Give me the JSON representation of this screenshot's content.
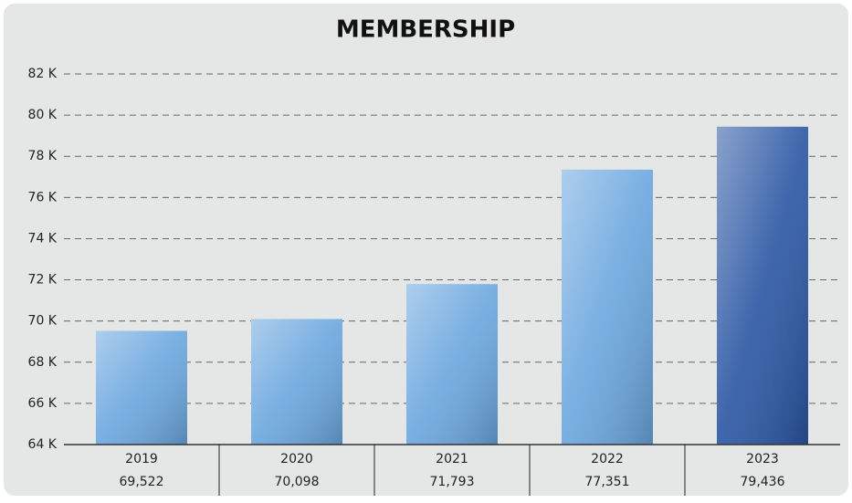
{
  "chart_data": {
    "type": "bar",
    "title": "MEMBERSHIP",
    "categories": [
      "2019",
      "2020",
      "2021",
      "2022",
      "2023"
    ],
    "values": [
      69522,
      70098,
      71793,
      77351,
      79436
    ],
    "value_labels": [
      "69,522",
      "70,098",
      "71,793",
      "77,351",
      "79,436"
    ],
    "colors": [
      "#6aa6de",
      "#6aa6de",
      "#6aa6de",
      "#6aa6de",
      "#2a56a3"
    ],
    "ylim": [
      64000,
      82000
    ],
    "yticks": [
      {
        "value": 64000,
        "label": "64 K"
      },
      {
        "value": 66000,
        "label": "66 K"
      },
      {
        "value": 68000,
        "label": "68 K"
      },
      {
        "value": 70000,
        "label": "70 K"
      },
      {
        "value": 72000,
        "label": "72 K"
      },
      {
        "value": 74000,
        "label": "74 K"
      },
      {
        "value": 76000,
        "label": "76 K"
      },
      {
        "value": 78000,
        "label": "78 K"
      },
      {
        "value": 80000,
        "label": "80 K"
      },
      {
        "value": 82000,
        "label": "82 K"
      }
    ],
    "grid": true
  }
}
